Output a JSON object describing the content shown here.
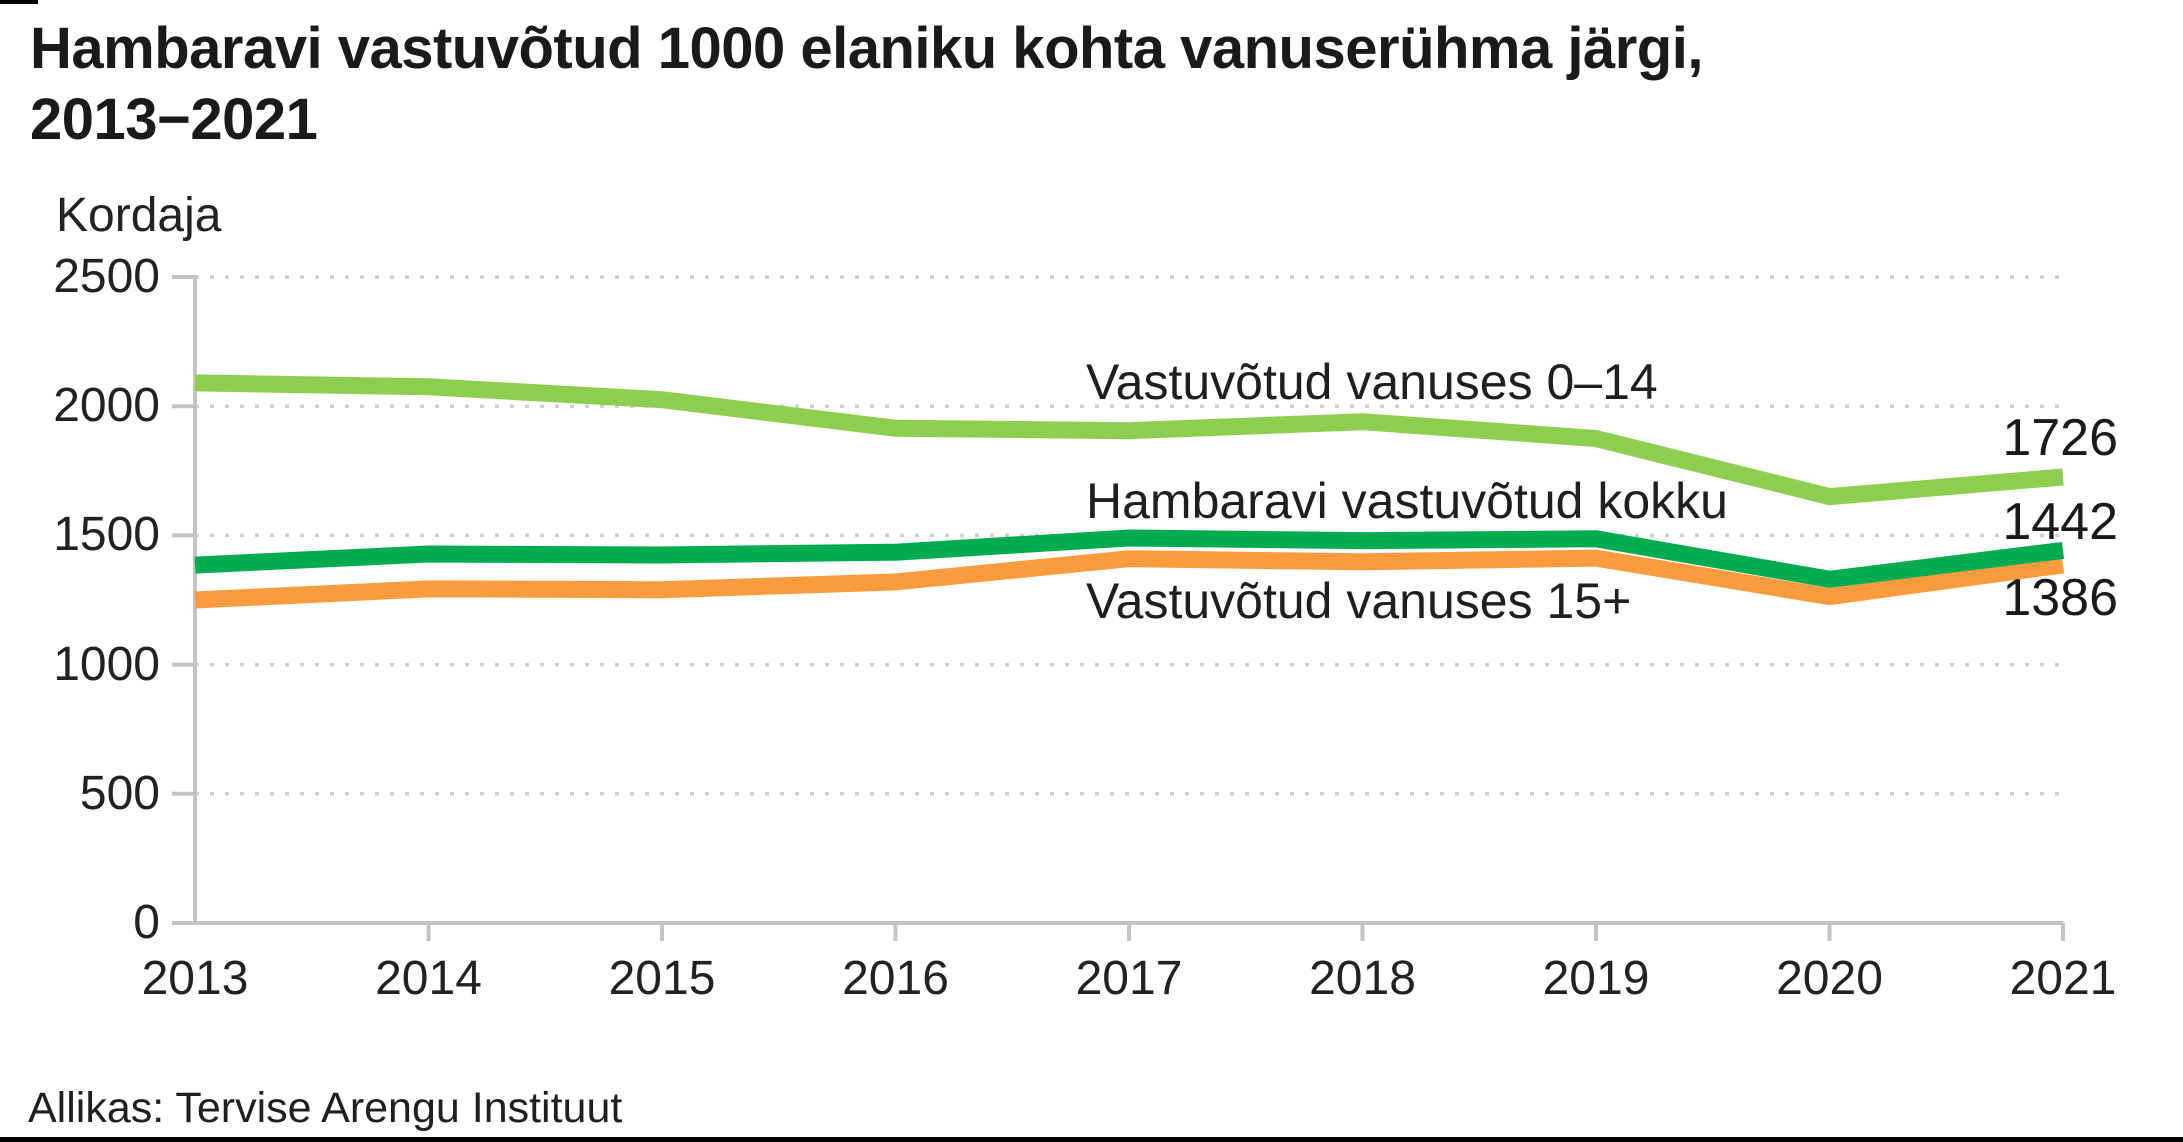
{
  "header": {
    "title": "Hambaravi vastuvõtud 1000 elaniku kohta vanuserühma järgi, 2013−2021"
  },
  "footer": {
    "source": "Allikas: Tervise Arengu Instituut"
  },
  "colors": {
    "axis": "#C4C4C4",
    "grid": "#CFCFCF",
    "text": "#1A1A1A",
    "series_0_14": "#8DCE4E",
    "series_kokku": "#00AC4F",
    "series_15plus": "#FA9C3D",
    "border_black": "#000000"
  },
  "chart_data": {
    "type": "line",
    "title": "Hambaravi vastuvõtud 1000 elaniku kohta vanuserühma järgi, 2013−2021",
    "ylabel": "Kordaja",
    "xlabel": "",
    "x": [
      2013,
      2014,
      2015,
      2016,
      2017,
      2018,
      2019,
      2020,
      2021
    ],
    "yticks": [
      0,
      500,
      1000,
      1500,
      2000,
      2500
    ],
    "ylim": [
      0,
      2500
    ],
    "grid": "horizontal-dotted",
    "legend_position": "inline-annotations",
    "series": [
      {
        "name": "Vastuvõtud vanuses 0–14",
        "color": "#8DCE4E",
        "values": [
          2090,
          2075,
          2025,
          1915,
          1905,
          1940,
          1875,
          1650,
          1726
        ],
        "end_label": "1726"
      },
      {
        "name": "Hambaravi vastuvõtud kokku",
        "color": "#00AC4F",
        "values": [
          1385,
          1428,
          1424,
          1435,
          1490,
          1480,
          1487,
          1330,
          1442
        ],
        "end_label": "1442"
      },
      {
        "name": "Vastuvõtud vanuses 15+",
        "color": "#FA9C3D",
        "values": [
          1250,
          1293,
          1290,
          1320,
          1410,
          1398,
          1412,
          1263,
          1386
        ],
        "end_label": "1386"
      }
    ]
  }
}
